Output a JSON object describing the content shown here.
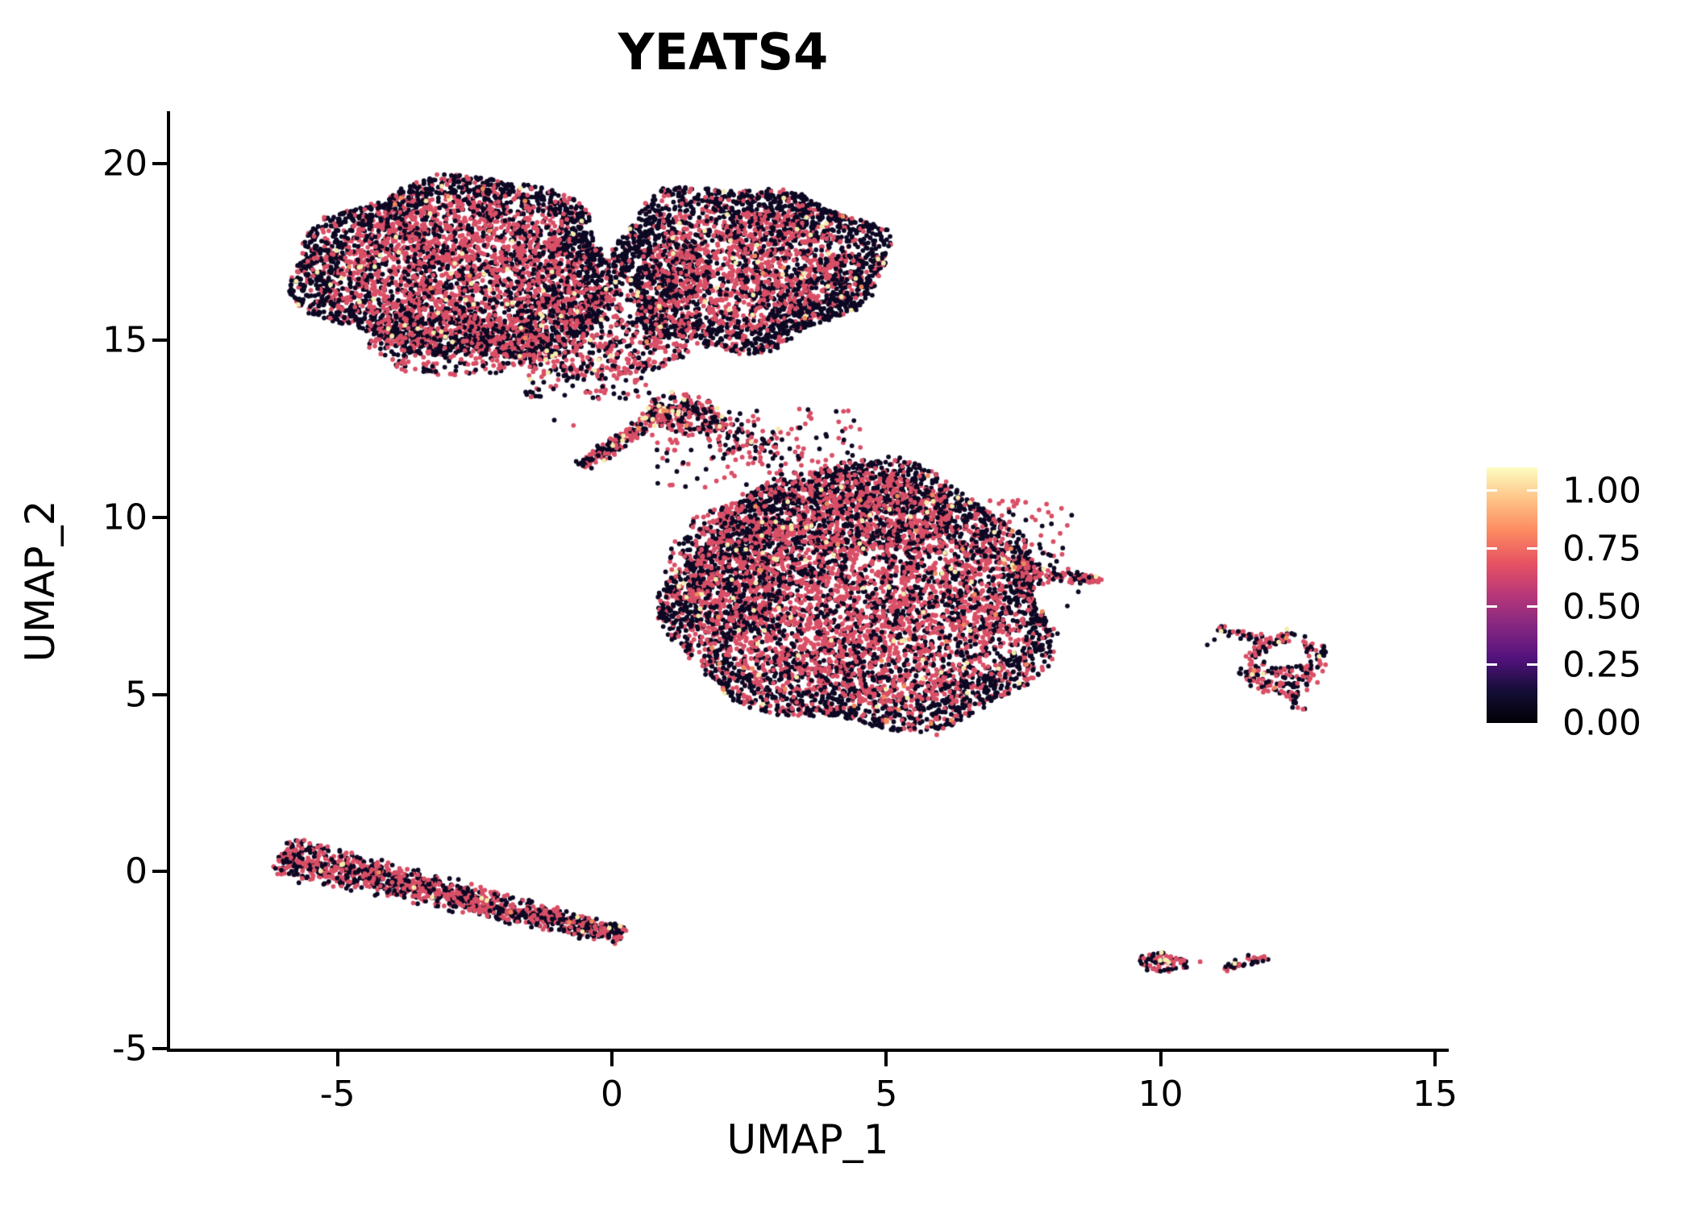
{
  "chart_data": {
    "type": "scatter",
    "title": "YEATS4",
    "xlabel": "UMAP_1",
    "ylabel": "UMAP_2",
    "xlim": [
      -8.08,
      15.22
    ],
    "ylim": [
      -5.05,
      21.43
    ],
    "x_ticks": [
      -5,
      0,
      5,
      10,
      15
    ],
    "x_tick_labels": [
      "-5",
      "0",
      "5",
      "10",
      "15"
    ],
    "y_ticks": [
      -5,
      0,
      5,
      10,
      15,
      20
    ],
    "y_tick_labels": [
      "-5",
      "0",
      "5",
      "10",
      "15",
      "20"
    ],
    "grid": false,
    "point_radius": 2.9,
    "colors": {
      "black": "#0d0823",
      "pink": "#d94f66",
      "orange": "#f08a5c",
      "yellow": "#f5ecac"
    },
    "color_values": {
      "black": 0.0,
      "pink": 0.6,
      "orange": 0.75,
      "yellow": 1.0
    },
    "legend": {
      "tick_labels": [
        "1.00",
        "0.75",
        "0.50",
        "0.25",
        "0.00"
      ],
      "tick_values": [
        1.0,
        0.75,
        0.5,
        0.25,
        0.0
      ],
      "vmax": 1.1,
      "colormap": [
        "#000004",
        "#140e36",
        "#51127c",
        "#832681",
        "#b73779",
        "#e75263",
        "#fc8961",
        "#fec287",
        "#fcfdbf"
      ]
    },
    "clusters": [
      {
        "name": "top-left-lobe",
        "kind": "ellipse",
        "n": 4300,
        "cx": -2.75,
        "cy": 17.0,
        "rx": 2.95,
        "ry": 2.55,
        "rot": -8,
        "lumpy": 0.07,
        "weights": {
          "pink": 0.55,
          "black": 0.435,
          "yellow": 0.012,
          "orange": 0.003
        },
        "edge_black": {
          "f": 0.76,
          "p": 0.6
        },
        "core_pink": 0.15
      },
      {
        "name": "top-right-lobe",
        "kind": "ellipse",
        "n": 3300,
        "cx": 2.45,
        "cy": 17.1,
        "rx": 2.45,
        "ry": 2.3,
        "rot": 6,
        "lumpy": 0.08,
        "weights": {
          "pink": 0.54,
          "black": 0.444,
          "yellow": 0.013,
          "orange": 0.003
        },
        "edge_black": {
          "f": 0.72,
          "p": 0.65
        },
        "core_pink": 0.15
      },
      {
        "name": "top-junction",
        "kind": "ellipse",
        "n": 650,
        "cx": -0.2,
        "cy": 15.2,
        "rx": 1.7,
        "ry": 1.3,
        "rot": 0,
        "weights": {
          "pink": 0.54,
          "black": 0.445,
          "yellow": 0.012,
          "orange": 0.003
        }
      },
      {
        "name": "top-left-underside",
        "kind": "ellipse",
        "n": 380,
        "cx": -2.9,
        "cy": 14.9,
        "rx": 1.6,
        "ry": 0.9,
        "rot": -6,
        "weights": {
          "pink": 0.54,
          "black": 0.445,
          "yellow": 0.012,
          "orange": 0.003
        }
      },
      {
        "name": "tail-fan",
        "kind": "ellipse",
        "n": 200,
        "cx": 1.35,
        "cy": 12.9,
        "rx": 0.78,
        "ry": 0.55,
        "rot": -20,
        "weights": {
          "pink": 0.52,
          "black": 0.41,
          "yellow": 0.06,
          "orange": 0.01
        }
      },
      {
        "name": "tail",
        "kind": "band",
        "n": 180,
        "p0": [
          1.0,
          13.1
        ],
        "p1": [
          -0.52,
          11.45
        ],
        "w": 0.55,
        "taper": 0.35,
        "weights": {
          "pink": 0.5,
          "black": 0.42,
          "yellow": 0.07,
          "orange": 0.01
        }
      },
      {
        "name": "bridge-band",
        "kind": "band",
        "n": 90,
        "p0": [
          1.7,
          12.7
        ],
        "p1": [
          3.5,
          11.35
        ],
        "w": 1.15,
        "taper": 0,
        "weights": {
          "pink": 0.5,
          "black": 0.49,
          "yellow": 0.01,
          "orange": 0
        }
      },
      {
        "name": "bridge-sprinkle",
        "kind": "rect",
        "n": 150,
        "u0": 0.7,
        "u1": 4.6,
        "v0": 10.85,
        "v1": 13.1,
        "weights": {
          "pink": 0.5,
          "black": 0.49,
          "yellow": 0.01,
          "orange": 0
        }
      },
      {
        "name": "under-lobe-sprinkle",
        "kind": "rect",
        "n": 80,
        "u0": -1.6,
        "u1": 0.7,
        "v0": 13.35,
        "v1": 14.35,
        "weights": {
          "pink": 0.54,
          "black": 0.445,
          "yellow": 0.012,
          "orange": 0.003
        }
      },
      {
        "name": "mid-main-blob",
        "kind": "ellipse",
        "n": 6200,
        "cx": 4.55,
        "cy": 7.65,
        "rx": 3.45,
        "ry": 3.75,
        "rot": 12,
        "lumpy": 0.06,
        "weights": {
          "pink": 0.55,
          "black": 0.432,
          "yellow": 0.013,
          "orange": 0.005
        },
        "edge_black": {
          "f": 0.82,
          "p": 0.5
        },
        "core_pink": 0.12
      },
      {
        "name": "mid-top-bulge",
        "kind": "ellipse",
        "n": 750,
        "cx": 4.2,
        "cy": 10.2,
        "rx": 2.1,
        "ry": 1.15,
        "rot": 0,
        "weights": {
          "pink": 0.54,
          "black": 0.445,
          "yellow": 0.012,
          "orange": 0.003
        }
      },
      {
        "name": "mid-left-bulge",
        "kind": "ellipse",
        "n": 520,
        "cx": 2.1,
        "cy": 8.5,
        "rx": 1.05,
        "ry": 1.9,
        "rot": 0,
        "weights": {
          "pink": 0.54,
          "black": 0.445,
          "yellow": 0.012,
          "orange": 0.003
        }
      },
      {
        "name": "mid-right-tip",
        "kind": "band",
        "n": 140,
        "p0": [
          7.3,
          8.55
        ],
        "p1": [
          8.92,
          8.22
        ],
        "w": 0.95,
        "taper": 0.8,
        "weights": {
          "pink": 0.58,
          "black": 0.39,
          "yellow": 0.02,
          "orange": 0.01
        }
      },
      {
        "name": "mid-topright-sprinkle",
        "kind": "rect",
        "n": 70,
        "u0": 6.5,
        "u1": 8.4,
        "v0": 8.7,
        "v1": 10.5,
        "weights": {
          "pink": 0.45,
          "black": 0.54,
          "yellow": 0.01,
          "orange": 0
        }
      },
      {
        "name": "bottom-left-band",
        "kind": "band",
        "n": 1300,
        "p0": [
          -6.05,
          0.48
        ],
        "p1": [
          0.18,
          -1.82
        ],
        "w": 1.32,
        "taper": 0.55,
        "weights": {
          "pink": 0.54,
          "black": 0.44,
          "yellow": 0.012,
          "orange": 0.004
        }
      },
      {
        "name": "right-ring",
        "kind": "ellipse",
        "n": 215,
        "cx": 12.25,
        "cy": 5.85,
        "rx": 0.78,
        "ry": 0.92,
        "rot": -15,
        "hole": {
          "cx": 12.32,
          "cy": 6.12,
          "r": 0.34
        },
        "weights": {
          "pink": 0.5,
          "black": 0.47,
          "yellow": 0.02,
          "orange": 0.01
        }
      },
      {
        "name": "right-ring-arm",
        "kind": "band",
        "n": 30,
        "p0": [
          11.0,
          6.88
        ],
        "p1": [
          11.85,
          6.58
        ],
        "w": 0.34,
        "taper": 0,
        "weights": {
          "pink": 0.38,
          "black": 0.6,
          "yellow": 0.02,
          "orange": 0
        }
      },
      {
        "name": "right-ring-strand",
        "kind": "band",
        "n": 16,
        "p0": [
          12.38,
          5.05
        ],
        "p1": [
          12.52,
          4.55
        ],
        "w": 0.3,
        "taper": 0,
        "weights": {
          "pink": 0.45,
          "black": 0.55,
          "yellow": 0,
          "orange": 0
        }
      },
      {
        "name": "bottom-right-blob",
        "kind": "ellipse",
        "n": 78,
        "cx": 10.05,
        "cy": -2.6,
        "rx": 0.45,
        "ry": 0.3,
        "rot": -12,
        "weights": {
          "pink": 0.5,
          "black": 0.47,
          "yellow": 0.03,
          "orange": 0
        }
      },
      {
        "name": "bottom-right-band",
        "kind": "band",
        "n": 35,
        "p0": [
          11.12,
          -2.72
        ],
        "p1": [
          11.93,
          -2.42
        ],
        "w": 0.26,
        "taper": 0,
        "weights": {
          "pink": 0.5,
          "black": 0.47,
          "yellow": 0.03,
          "orange": 0
        }
      }
    ],
    "extra_points": [
      [
        5.92,
        3.86,
        "pink"
      ],
      [
        7.0,
        7.42,
        "pink"
      ],
      [
        7.09,
        7.28,
        "black"
      ],
      [
        10.72,
        -2.55,
        "pink"
      ],
      [
        8.82,
        8.33,
        "yellow"
      ],
      [
        8.05,
        6.85,
        "pink"
      ],
      [
        8.12,
        6.72,
        "black"
      ],
      [
        7.75,
        7.1,
        "black"
      ],
      [
        8.3,
        7.5,
        "black"
      ],
      [
        8.5,
        7.9,
        "black"
      ],
      [
        10.85,
        6.4,
        "black"
      ],
      [
        10.98,
        6.55,
        "black"
      ],
      [
        12.3,
        6.85,
        "yellow"
      ],
      [
        12.15,
        6.48,
        "yellow"
      ],
      [
        10.08,
        -2.5,
        "yellow"
      ],
      [
        11.35,
        -2.6,
        "yellow"
      ],
      [
        1.15,
        11.9,
        "pink"
      ],
      [
        1.3,
        11.55,
        "black"
      ],
      [
        -0.7,
        12.6,
        "pink"
      ],
      [
        -1.05,
        12.75,
        "black"
      ]
    ]
  }
}
